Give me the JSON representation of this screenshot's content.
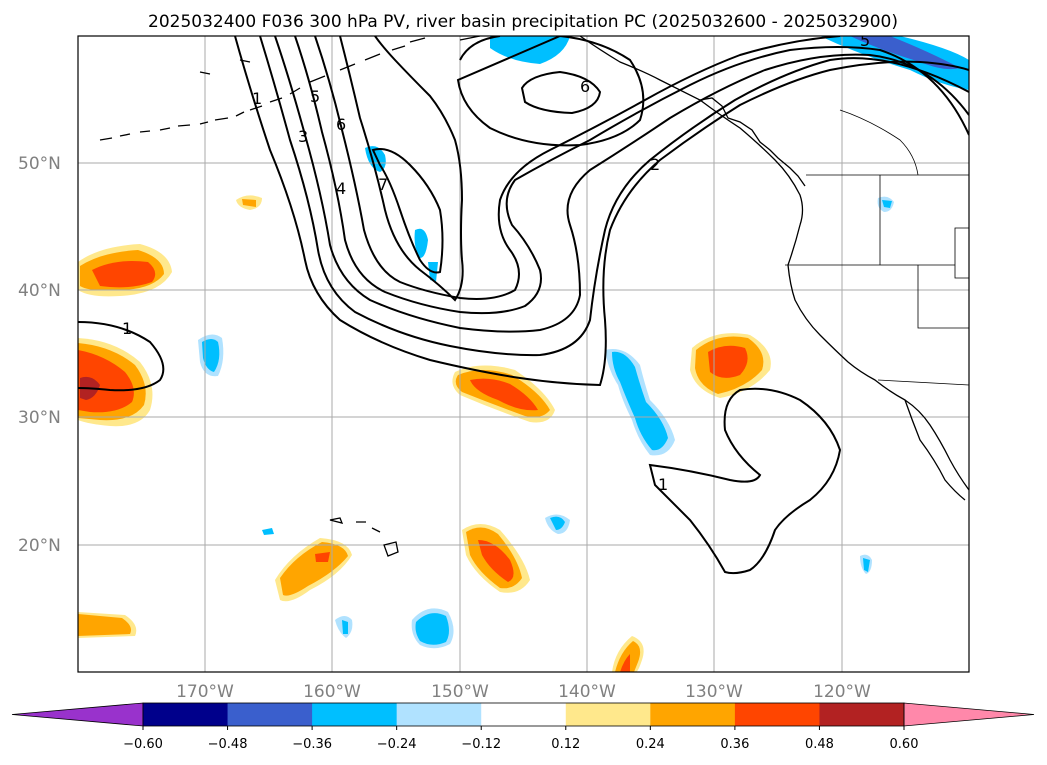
{
  "title": "2025032400 F036 300 hPa PV, river basin precipitation PC (2025032600 - 2025032900)",
  "lat_labels": [
    "50°N",
    "40°N",
    "30°N",
    "20°N"
  ],
  "lon_labels": [
    "170°W",
    "160°W",
    "150°W",
    "140°W",
    "130°W",
    "120°W"
  ],
  "colorbar": {
    "ticks": [
      "−0.60",
      "−0.48",
      "−0.36",
      "−0.24",
      "−0.12",
      "0.12",
      "0.24",
      "0.36",
      "0.48",
      "0.60"
    ],
    "colors": [
      "#9932cc",
      "#00008b",
      "#3a5fcd",
      "#00bfff",
      "#b0e2ff",
      "#ffffff",
      "#ffe88c",
      "#ffa500",
      "#ff4500",
      "#b22222",
      "#ff88aa"
    ]
  },
  "contour_labels": [
    "1",
    "2",
    "3",
    "4",
    "5",
    "6",
    "7",
    "1",
    "2",
    "6",
    "5",
    "1"
  ],
  "colors": {
    "orange": "#ffa500",
    "red_orange": "#ff4500",
    "dark_red": "#b22222",
    "light_yellow": "#ffe88c",
    "cyan": "#00bfff",
    "light_blue": "#b0e2ff",
    "blue": "#3a5fcd"
  }
}
